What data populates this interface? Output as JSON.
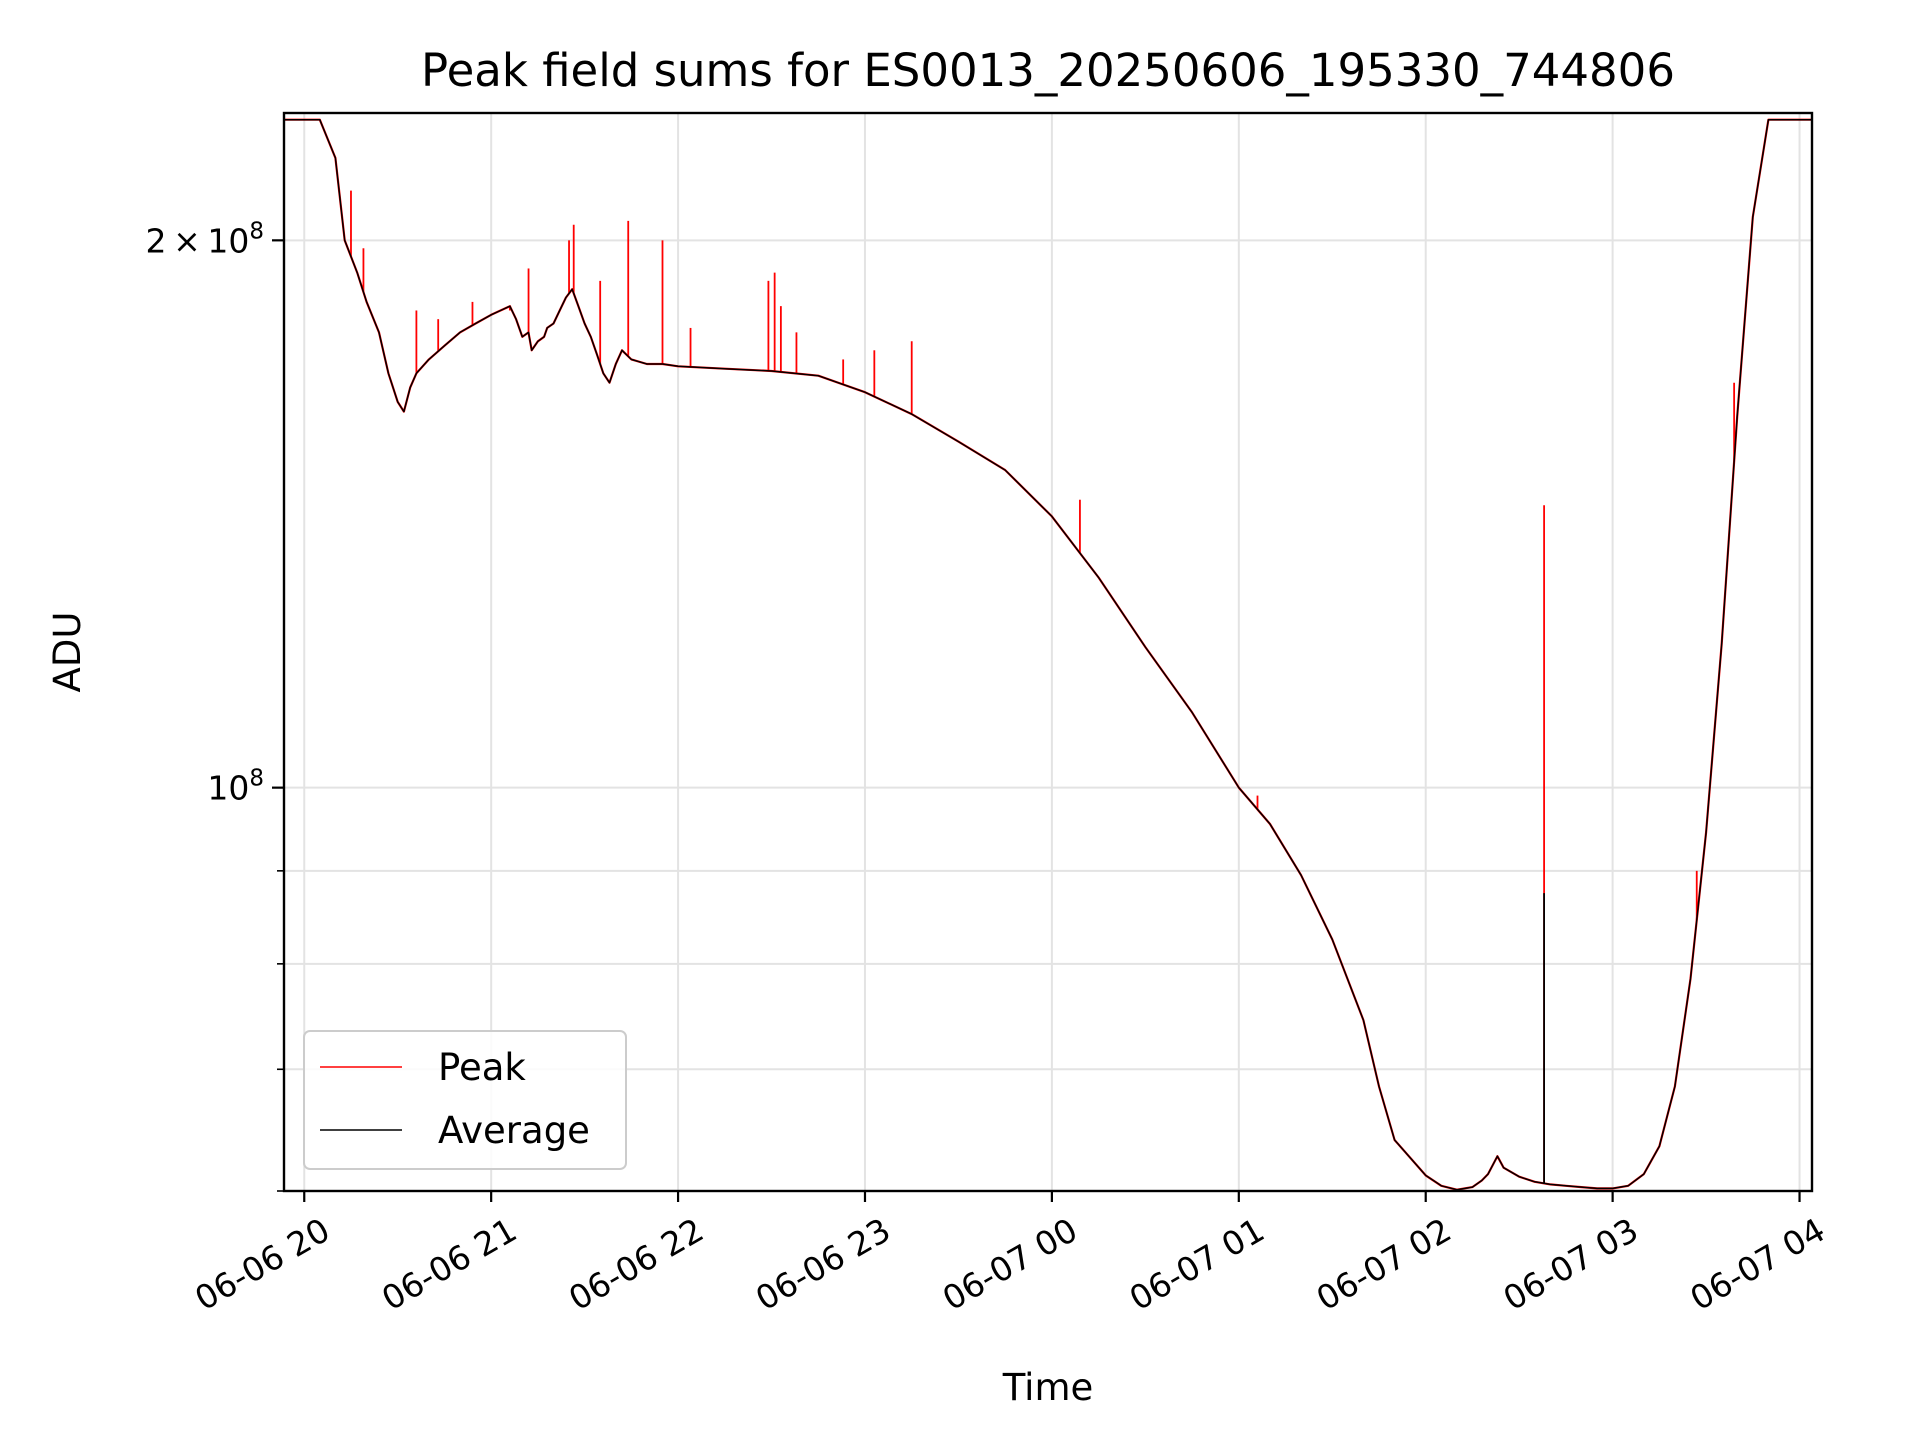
{
  "chart_data": {
    "type": "line",
    "title": "Peak field sums for ES0013_20250606_195330_744806",
    "xlabel": "Time",
    "ylabel": "ADU",
    "y_scale": "log",
    "ylim": [
      60000000,
      235000000
    ],
    "xlim": [
      "2025-06-06 19:53:30",
      "2025-06-07 04:04:00"
    ],
    "grid": true,
    "legend_position": "lower-left",
    "x_ticks": [
      {
        "label": "06-06 20",
        "time": "2025-06-06 20:00"
      },
      {
        "label": "06-06 21",
        "time": "2025-06-06 21:00"
      },
      {
        "label": "06-06 22",
        "time": "2025-06-06 22:00"
      },
      {
        "label": "06-06 23",
        "time": "2025-06-06 23:00"
      },
      {
        "label": "06-07 00",
        "time": "2025-06-07 00:00"
      },
      {
        "label": "06-07 01",
        "time": "2025-06-07 01:00"
      },
      {
        "label": "06-07 02",
        "time": "2025-06-07 02:00"
      },
      {
        "label": "06-07 03",
        "time": "2025-06-07 03:00"
      },
      {
        "label": "06-07 04",
        "time": "2025-06-07 04:00"
      }
    ],
    "y_major_ticks": [
      {
        "mantissa": "2",
        "exponent": "8",
        "value": 200000000
      },
      {
        "mantissa": "",
        "exponent": "8",
        "value": 100000000
      }
    ],
    "y_minor_ticks": [
      60000000,
      70000000,
      80000000,
      90000000
    ],
    "series": [
      {
        "name": "Peak",
        "color": "#ff0000",
        "x": [
          "2025-06-06 19:53:30",
          "2025-06-06 20:05:00",
          "2025-06-06 20:10:00",
          "2025-06-06 20:13:00",
          "2025-06-06 20:17:00",
          "2025-06-06 20:20:00",
          "2025-06-06 20:24:00",
          "2025-06-06 20:27:00",
          "2025-06-06 20:30:00",
          "2025-06-06 20:32:00",
          "2025-06-06 20:34:00",
          "2025-06-06 20:36:00",
          "2025-06-06 20:40:00",
          "2025-06-06 20:45:00",
          "20:50",
          "20:55",
          "21:00",
          "21:03",
          "21:06",
          "21:08",
          "21:10",
          "21:12",
          "21:13",
          "21:15",
          "21:17",
          "21:18",
          "21:20",
          "21:22",
          "21:24",
          "21:26",
          "21:28",
          "21:30",
          "21:32",
          "21:34",
          "21:36",
          "21:38",
          "21:40",
          "21:42",
          "21:45",
          "21:50",
          "21:55",
          "22:00",
          "22:15",
          "22:30",
          "22:45",
          "23:00",
          "23:15",
          "23:30",
          "23:45",
          "00:00",
          "00:15",
          "00:30",
          "00:45",
          "01:00",
          "01:10",
          "01:20",
          "01:30",
          "01:40",
          "01:45",
          "01:50",
          "02:00",
          "02:05",
          "02:10",
          "02:15",
          "02:18",
          "02:20",
          "02:23",
          "02:25",
          "02:30",
          "02:35",
          "02:40",
          "02:45",
          "02:50",
          "02:55",
          "03:00",
          "03:05",
          "03:10",
          "03:15",
          "03:20",
          "03:25",
          "03:30",
          "03:35",
          "03:40",
          "03:45",
          "03:50",
          "04:04"
        ],
        "values": [
          233000000,
          233000000,
          222000000,
          200000000,
          192000000,
          185000000,
          178000000,
          169000000,
          163000000,
          161000000,
          166000000,
          169000000,
          172000000,
          175000000,
          178000000,
          180000000,
          182000000,
          183000000,
          184000000,
          181000000,
          177000000,
          178000000,
          174000000,
          176000000,
          177000000,
          179000000,
          180000000,
          183000000,
          186000000,
          188000000,
          184000000,
          180000000,
          177000000,
          173000000,
          169000000,
          167000000,
          171000000,
          174000000,
          172000000,
          171000000,
          171000000,
          170500000,
          170000000,
          169500000,
          168500000,
          165000000,
          160500000,
          155000000,
          149500000,
          141000000,
          130500000,
          119500000,
          110000000,
          100000000,
          95500000,
          89500000,
          82500000,
          74500000,
          68500000,
          64000000,
          61200000,
          60400000,
          60100000,
          60300000,
          60800000,
          61300000,
          62700000,
          61800000,
          61100000,
          60700000,
          60500000,
          60400000,
          60300000,
          60200000,
          60200000,
          60400000,
          61300000,
          63500000,
          68500000,
          78500000,
          94500000,
          120000000,
          160000000,
          206000000,
          233000000,
          233000000
        ]
      },
      {
        "name": "Average",
        "color": "#000000",
        "x": [
          "2025-06-06 19:53:30",
          "2025-06-06 20:05:00",
          "2025-06-06 20:10:00",
          "2025-06-06 20:13:00",
          "2025-06-06 20:17:00",
          "2025-06-06 20:20:00",
          "2025-06-06 20:24:00",
          "2025-06-06 20:27:00",
          "2025-06-06 20:30:00",
          "2025-06-06 20:32:00",
          "2025-06-06 20:34:00",
          "2025-06-06 20:36:00",
          "2025-06-06 20:40:00",
          "2025-06-06 20:45:00",
          "20:50",
          "20:55",
          "21:00",
          "21:03",
          "21:06",
          "21:08",
          "21:10",
          "21:12",
          "21:13",
          "21:15",
          "21:17",
          "21:18",
          "21:20",
          "21:22",
          "21:24",
          "21:26",
          "21:28",
          "21:30",
          "21:32",
          "21:34",
          "21:36",
          "21:38",
          "21:40",
          "21:42",
          "21:45",
          "21:50",
          "21:55",
          "22:00",
          "22:15",
          "22:30",
          "22:45",
          "23:00",
          "23:15",
          "23:30",
          "23:45",
          "00:00",
          "00:15",
          "00:30",
          "00:45",
          "01:00",
          "01:10",
          "01:20",
          "01:30",
          "01:40",
          "01:45",
          "01:50",
          "02:00",
          "02:05",
          "02:10",
          "02:15",
          "02:18",
          "02:20",
          "02:23",
          "02:25",
          "02:30",
          "02:35",
          "02:40",
          "02:45",
          "02:50",
          "02:55",
          "03:00",
          "03:05",
          "03:10",
          "03:15",
          "03:20",
          "03:25",
          "03:30",
          "03:35",
          "03:40",
          "03:45",
          "03:50",
          "04:04"
        ],
        "values": [
          233000000,
          233000000,
          222000000,
          200000000,
          192000000,
          185000000,
          178000000,
          169000000,
          163000000,
          161000000,
          166000000,
          169000000,
          172000000,
          175000000,
          178000000,
          180000000,
          182000000,
          183000000,
          184000000,
          181000000,
          177000000,
          178000000,
          174000000,
          176000000,
          177000000,
          179000000,
          180000000,
          183000000,
          186000000,
          188000000,
          184000000,
          180000000,
          177000000,
          173000000,
          169000000,
          167000000,
          171000000,
          174000000,
          172000000,
          171000000,
          171000000,
          170500000,
          170000000,
          169500000,
          168500000,
          165000000,
          160500000,
          155000000,
          149500000,
          141000000,
          130500000,
          119500000,
          110000000,
          100000000,
          95500000,
          89500000,
          82500000,
          74500000,
          68500000,
          64000000,
          61200000,
          60400000,
          60100000,
          60300000,
          60800000,
          61300000,
          62700000,
          61800000,
          61100000,
          60700000,
          60500000,
          60400000,
          60300000,
          60200000,
          60200000,
          60400000,
          61300000,
          63500000,
          68500000,
          78500000,
          94500000,
          120000000,
          160000000,
          206000000,
          233000000,
          233000000
        ]
      }
    ],
    "peak_spikes": [
      {
        "time": "2025-06-06 20:15:00",
        "value": 213000000
      },
      {
        "time": "2025-06-06 20:19:00",
        "value": 198000000
      },
      {
        "time": "2025-06-06 20:36:00",
        "value": 183000000
      },
      {
        "time": "2025-06-06 20:43:00",
        "value": 181000000
      },
      {
        "time": "2025-06-06 20:54:00",
        "value": 185000000
      },
      {
        "time": "2025-06-06 21:06:00",
        "value": 183000000
      },
      {
        "time": "2025-06-06 21:12:00",
        "value": 193000000
      },
      {
        "time": "2025-06-06 21:25:00",
        "value": 200000000
      },
      {
        "time": "2025-06-06 21:26:30",
        "value": 204000000
      },
      {
        "time": "2025-06-06 21:35:00",
        "value": 190000000
      },
      {
        "time": "2025-06-06 21:44:00",
        "value": 205000000
      },
      {
        "time": "2025-06-06 21:55:00",
        "value": 200000000
      },
      {
        "time": "2025-06-06 22:04:00",
        "value": 179000000
      },
      {
        "time": "2025-06-06 22:29:00",
        "value": 190000000
      },
      {
        "time": "2025-06-06 22:31:00",
        "value": 192000000
      },
      {
        "time": "2025-06-06 22:33:00",
        "value": 184000000
      },
      {
        "time": "2025-06-06 22:38:00",
        "value": 178000000
      },
      {
        "time": "2025-06-06 22:53:00",
        "value": 172000000
      },
      {
        "time": "2025-06-06 23:03:00",
        "value": 174000000
      },
      {
        "time": "2025-06-06 23:15:00",
        "value": 176000000
      },
      {
        "time": "2025-06-07 00:09:00",
        "value": 144000000
      },
      {
        "time": "2025-06-07 01:06:00",
        "value": 99000000
      },
      {
        "time": "2025-06-07 02:38:00",
        "value": 143000000
      },
      {
        "time": "2025-06-07 03:27:00",
        "value": 90000000
      },
      {
        "time": "2025-06-07 03:39:00",
        "value": 167000000
      }
    ],
    "average_spikes": [
      {
        "time": "2025-06-07 02:38:00",
        "value": 87500000
      }
    ]
  }
}
